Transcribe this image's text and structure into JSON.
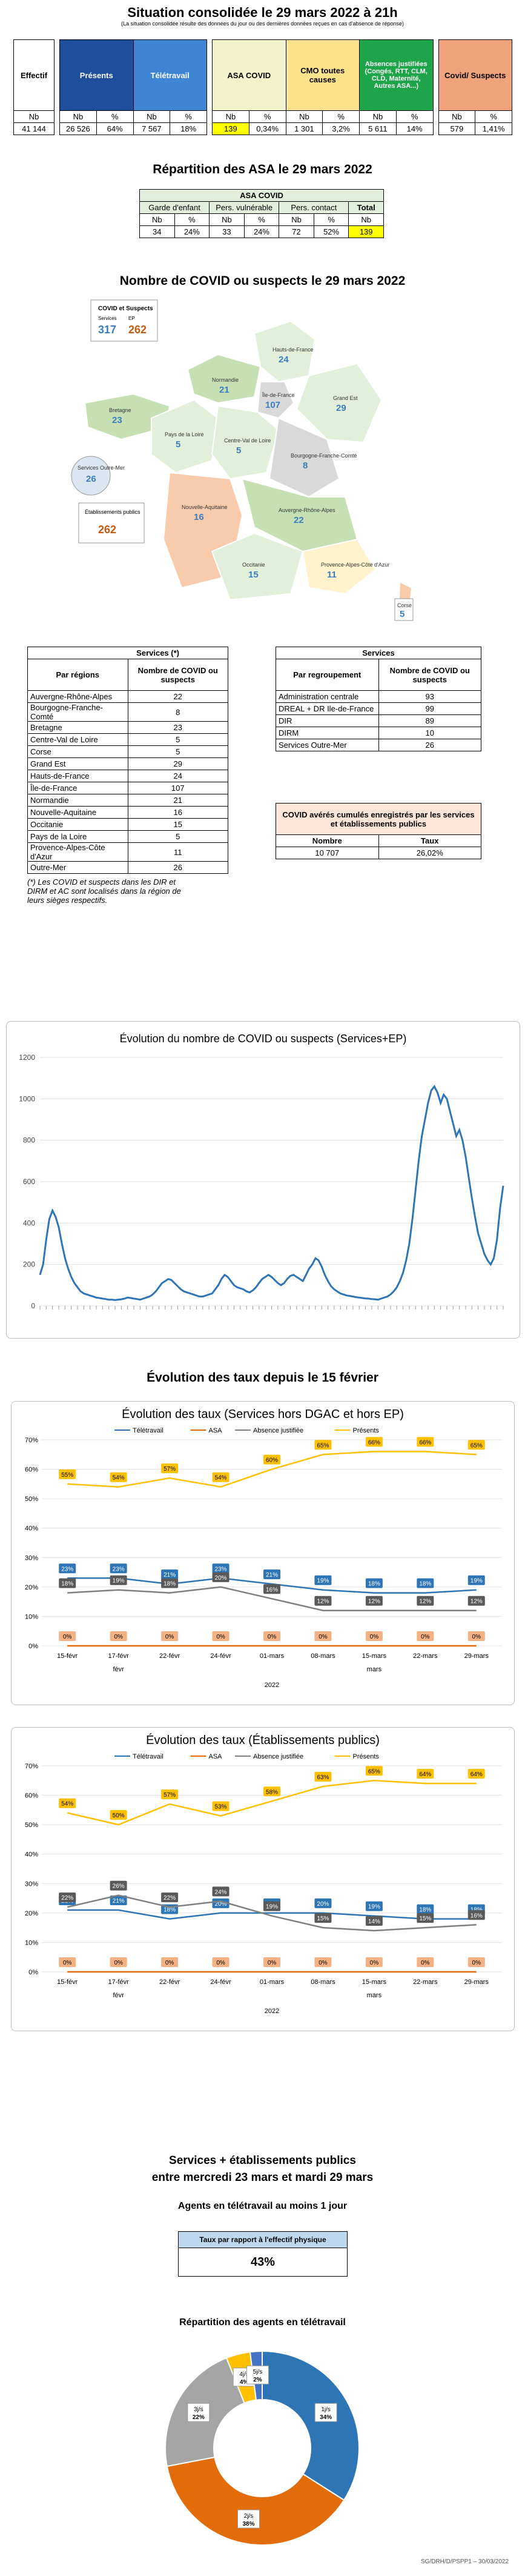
{
  "header": {
    "title": "Situation consolidée le 29 mars 2022 à 21h",
    "subtitle": "(La situation consolidée résulte des données du jour ou des dernières données reçues en cas d'absence de réponse)"
  },
  "main_table": {
    "columns": [
      "Effectif",
      "Présents",
      "Télétravail",
      "ASA COVID",
      "CMO toutes causes",
      "Absences justifiées (Congés, RTT, CLM, CLD, Maternité, Autres ASA...)",
      "Covid/ Suspects"
    ],
    "subheaders": [
      "Nb",
      "Nb",
      "%",
      "Nb",
      "%",
      "Nb",
      "%",
      "Nb",
      "%",
      "Nb",
      "%",
      "Nb",
      "%"
    ],
    "values": [
      "41 144",
      "26 526",
      "64%",
      "7 567",
      "18%",
      "139",
      "0,34%",
      "1 301",
      "3,2%",
      "5 611",
      "14%",
      "579",
      "1,41%"
    ]
  },
  "asa": {
    "title": "Répartition des ASA le 29 mars 2022",
    "table_title": "ASA COVID",
    "groups": [
      "Garde d'enfant",
      "Pers. vulnérable",
      "Pers. contact",
      "Total"
    ],
    "subheaders": [
      "Nb",
      "%",
      "Nb",
      "%",
      "Nb",
      "%",
      "Nb"
    ],
    "values": [
      "34",
      "24%",
      "33",
      "24%",
      "72",
      "52%",
      "139"
    ]
  },
  "map": {
    "title": "Nombre de COVID ou suspects le 29 mars 2022",
    "legend_title": "COVID et Suspects",
    "legend_services": "Services",
    "legend_ep": "EP",
    "legend_services_value": "317",
    "legend_ep_value": "262",
    "regions": [
      {
        "name": "Hauts-de-France",
        "value": "24"
      },
      {
        "name": "Normandie",
        "value": "21"
      },
      {
        "name": "Île-de-France",
        "value": "107"
      },
      {
        "name": "Grand Est",
        "value": "29"
      },
      {
        "name": "Bretagne",
        "value": "23"
      },
      {
        "name": "Pays de la Loire",
        "value": "5"
      },
      {
        "name": "Centre-Val de Loire",
        "value": "5"
      },
      {
        "name": "Bourgogne-Franche-Comté",
        "value": "8"
      },
      {
        "name": "Nouvelle-Aquitaine",
        "value": "16"
      },
      {
        "name": "Auvergne-Rhône-Alpes",
        "value": "22"
      },
      {
        "name": "Occitanie",
        "value": "15"
      },
      {
        "name": "Provence-Alpes-Côte d'Azur",
        "value": "11"
      },
      {
        "name": "Corse",
        "value": "5"
      },
      {
        "name": "Services Outre-Mer",
        "value": "26"
      }
    ],
    "ep_label": "Établissements publics",
    "ep_value": "262"
  },
  "services_regions": {
    "title": "Services (*)",
    "col1": "Par régions",
    "col2": "Nombre de COVID ou suspects",
    "rows": [
      [
        "Auvergne-Rhône-Alpes",
        "22"
      ],
      [
        "Bourgogne-Franche-Comté",
        "8"
      ],
      [
        "Bretagne",
        "23"
      ],
      [
        "Centre-Val de Loire",
        "5"
      ],
      [
        "Corse",
        "5"
      ],
      [
        "Grand Est",
        "29"
      ],
      [
        "Hauts-de-France",
        "24"
      ],
      [
        "Île-de-France",
        "107"
      ],
      [
        "Normandie",
        "21"
      ],
      [
        "Nouvelle-Aquitaine",
        "16"
      ],
      [
        "Occitanie",
        "15"
      ],
      [
        "Pays de la Loire",
        "5"
      ],
      [
        "Provence-Alpes-Côte d'Azur",
        "11"
      ],
      [
        "Outre-Mer",
        "26"
      ]
    ],
    "footnote": "(*) Les COVID et suspects dans les DIR et DIRM et AC sont localisés dans la région de leurs sièges respectifs."
  },
  "services_groups": {
    "title": "Services",
    "col1": "Par regroupement",
    "col2": "Nombre de COVID ou suspects",
    "rows": [
      [
        "Administration centrale",
        "93"
      ],
      [
        "DREAL + DR Ile-de-France",
        "99"
      ],
      [
        "DIR",
        "89"
      ],
      [
        "DIRM",
        "10"
      ],
      [
        "Services Outre-Mer",
        "26"
      ]
    ]
  },
  "cumul": {
    "title": "COVID avérés cumulés enregistrés par les services et établissements publics",
    "col1": "Nombre",
    "col2": "Taux",
    "v1": "10 707",
    "v2": "26,02%"
  },
  "chart1": {
    "title": "Évolution du nombre de COVID ou suspects (Services+EP)",
    "colors": {
      "line": "#2e75b6"
    }
  },
  "section_taux": {
    "title": "Évolution des taux depuis le 15 février"
  },
  "chart2": {
    "title": "Évolution des taux (Services hors DGAC et hors EP)"
  },
  "chart3": {
    "title": "Évolution des taux (Établissements publics)"
  },
  "chart_data": [
    {
      "type": "line",
      "title": "Évolution du nombre de COVID ou suspects (Services+EP)",
      "ylim": [
        0,
        1200
      ],
      "yticks": [
        0,
        200,
        400,
        600,
        800,
        1000,
        1200
      ],
      "series": [
        {
          "values": [
            150,
            200,
            320,
            420,
            460,
            430,
            380,
            300,
            230,
            180,
            140,
            110,
            90,
            70,
            60,
            55,
            50,
            45,
            40,
            38,
            35,
            33,
            30,
            30,
            28,
            30,
            32,
            35,
            40,
            38,
            35,
            33,
            30,
            35,
            40,
            45,
            55,
            70,
            90,
            110,
            120,
            130,
            125,
            110,
            95,
            80,
            70,
            65,
            60,
            55,
            50,
            45,
            45,
            50,
            55,
            60,
            80,
            100,
            130,
            150,
            140,
            120,
            100,
            90,
            85,
            80,
            70,
            65,
            75,
            90,
            110,
            130,
            140,
            150,
            140,
            125,
            110,
            100,
            110,
            130,
            145,
            150,
            140,
            130,
            120,
            150,
            180,
            200,
            230,
            220,
            190,
            150,
            120,
            95,
            80,
            70,
            60,
            55,
            50,
            48,
            45,
            42,
            40,
            38,
            36,
            35,
            33,
            32,
            30,
            35,
            40,
            45,
            55,
            70,
            90,
            120,
            160,
            220,
            300,
            420,
            560,
            700,
            820,
            900,
            980,
            1040,
            1060,
            1030,
            980,
            1020,
            1000,
            940,
            880,
            820,
            850,
            800,
            720,
            620,
            520,
            430,
            350,
            300,
            250,
            220,
            200,
            230,
            320,
            470,
            580
          ]
        }
      ]
    },
    {
      "type": "line",
      "title": "Évolution des taux (Services hors DGAC et hors EP)",
      "categories": [
        "15-févr",
        "17-févr",
        "22-févr",
        "24-févr",
        "01-mars",
        "08-mars",
        "15-mars",
        "22-mars",
        "29-mars"
      ],
      "month_labels": [
        "févr",
        "mars"
      ],
      "year_label": "2022",
      "ylim": [
        0,
        70
      ],
      "yticks": [
        "0%",
        "10%",
        "20%",
        "30%",
        "40%",
        "50%",
        "60%",
        "70%"
      ],
      "series": [
        {
          "name": "Télétravail",
          "color": "#2e75b6",
          "values": [
            23,
            23,
            21,
            23,
            21,
            19,
            18,
            18,
            19
          ]
        },
        {
          "name": "ASA",
          "color": "#e26b0a",
          "values": [
            0,
            0,
            0,
            0,
            0,
            0,
            0,
            0,
            0
          ]
        },
        {
          "name": "Absence justifiée",
          "color": "#7f7f7f",
          "values": [
            18,
            19,
            18,
            20,
            16,
            12,
            12,
            12,
            12
          ]
        },
        {
          "name": "Présents",
          "color": "#ffc000",
          "values": [
            55,
            54,
            57,
            54,
            60,
            65,
            66,
            66,
            65
          ]
        }
      ]
    },
    {
      "type": "line",
      "title": "Évolution des taux (Établissements publics)",
      "categories": [
        "15-févr",
        "17-févr",
        "22-févr",
        "24-févr",
        "01-mars",
        "08-mars",
        "15-mars",
        "22-mars",
        "29-mars"
      ],
      "month_labels": [
        "févr",
        "mars"
      ],
      "year_label": "2022",
      "ylim": [
        0,
        70
      ],
      "yticks": [
        "0%",
        "10%",
        "20%",
        "30%",
        "40%",
        "50%",
        "60%",
        "70%"
      ],
      "series": [
        {
          "name": "Télétravail",
          "color": "#2e75b6",
          "values": [
            21,
            21,
            18,
            20,
            20,
            20,
            19,
            18,
            18
          ]
        },
        {
          "name": "ASA",
          "color": "#e26b0a",
          "values": [
            0,
            0,
            0,
            0,
            0,
            0,
            0,
            0,
            0
          ]
        },
        {
          "name": "Absence justifiée",
          "color": "#7f7f7f",
          "values": [
            22,
            26,
            22,
            24,
            19,
            15,
            14,
            15,
            16
          ]
        },
        {
          "name": "Présents",
          "color": "#ffc000",
          "values": [
            54,
            50,
            57,
            53,
            58,
            63,
            65,
            64,
            64
          ]
        }
      ]
    },
    {
      "type": "pie",
      "title": "Répartition des agents en télétravail",
      "labels": [
        "1j/s",
        "2j/s",
        "3j/s",
        "4j/s",
        "5j/s"
      ],
      "values": [
        34,
        38,
        22,
        4,
        2
      ],
      "colors": [
        "#2e75b6",
        "#e26b0a",
        "#a5a5a5",
        "#ffc000",
        "#4472c4"
      ]
    }
  ],
  "final": {
    "title_line1": "Services + établissements publics",
    "title_line2": "entre mercredi 23 mars et mardi 29 mars",
    "subtitle": "Agents en télétravail au moins 1 jour",
    "box_header": "Taux par rapport à l'effectif physique",
    "box_value": "43%",
    "pie_title": "Répartition des agents en télétravail",
    "footer": "SG/DRH/D/PSPP1 – 30/03/2022"
  }
}
